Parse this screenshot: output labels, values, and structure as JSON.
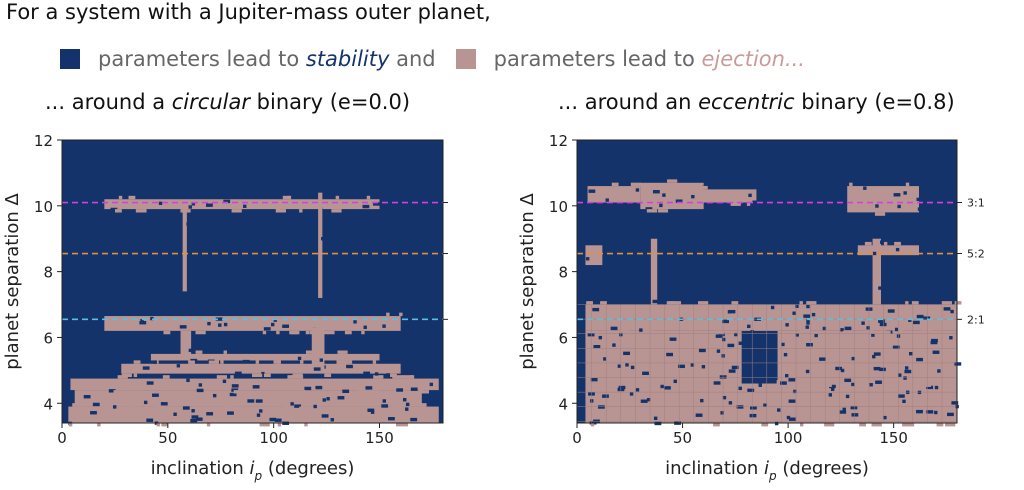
{
  "headline": "For a system with a Jupiter-mass outer planet,",
  "legend": {
    "stable": {
      "text1": "parameters lead to ",
      "emph": "stability",
      "text2": " and",
      "color": "#14336b"
    },
    "eject": {
      "text1": "parameters lead to ",
      "emph": "ejection...",
      "color": "#b89593"
    }
  },
  "panels": [
    {
      "pre": "... around a ",
      "emph": "circular",
      "post": " binary (e=0.0)"
    },
    {
      "pre": "... around an ",
      "emph": "eccentric",
      "post": " binary (e=0.8)"
    }
  ],
  "resonance_labels": [
    "3:1",
    "5:2",
    "2:1"
  ],
  "chart_data": [
    {
      "type": "heatmap",
      "title": "... around a circular binary (e=0.0)",
      "xlabel": "inclination i_p (degrees)",
      "ylabel": "planet separation Δ",
      "xlim": [
        0,
        180
      ],
      "ylim": [
        3.4,
        12
      ],
      "xticks": [
        0,
        50,
        100,
        150
      ],
      "yticks": [
        4,
        6,
        8,
        10,
        12
      ],
      "resonances": [
        {
          "y": 10.1,
          "color": "#d63ee0"
        },
        {
          "y": 8.55,
          "color": "#e0903a"
        },
        {
          "y": 6.55,
          "color": "#5bc0e0"
        }
      ],
      "ejection_regions": [
        {
          "xmin": 3,
          "xmax": 178,
          "ymin": 3.4,
          "ymax": 3.9
        },
        {
          "xmin": 6,
          "xmax": 170,
          "ymin": 3.9,
          "ymax": 4.4
        },
        {
          "xmin": 4,
          "xmax": 178,
          "ymin": 4.4,
          "ymax": 4.75
        },
        {
          "xmin": 28,
          "xmax": 160,
          "ymin": 4.9,
          "ymax": 5.2
        },
        {
          "xmin": 42,
          "xmax": 150,
          "ymin": 5.3,
          "ymax": 5.5
        },
        {
          "xmin": 20,
          "xmax": 160,
          "ymin": 6.2,
          "ymax": 6.65
        },
        {
          "xmin": 20,
          "xmax": 150,
          "ymin": 9.9,
          "ymax": 10.2
        },
        {
          "xmin": 56,
          "xmax": 61,
          "ymin": 5.4,
          "ymax": 6.2
        },
        {
          "xmin": 118,
          "xmax": 124,
          "ymin": 5.0,
          "ymax": 6.3
        },
        {
          "xmin": 57,
          "xmax": 59,
          "ymin": 7.4,
          "ymax": 9.9
        },
        {
          "xmin": 121,
          "xmax": 123,
          "ymin": 7.2,
          "ymax": 10.4
        }
      ]
    },
    {
      "type": "heatmap",
      "title": "... around an eccentric binary (e=0.8)",
      "xlabel": "inclination i_p (degrees)",
      "ylabel": "planet separation Δ",
      "xlim": [
        0,
        180
      ],
      "ylim": [
        3.4,
        12
      ],
      "xticks": [
        0,
        50,
        100,
        150
      ],
      "yticks": [
        4,
        6,
        8,
        10,
        12
      ],
      "resonances": [
        {
          "y": 10.1,
          "color": "#d63ee0"
        },
        {
          "y": 8.55,
          "color": "#e0903a"
        },
        {
          "y": 6.55,
          "color": "#5bc0e0"
        }
      ],
      "ejection_regions": [
        {
          "xmin": 4,
          "xmax": 180,
          "ymin": 3.4,
          "ymax": 4.6
        },
        {
          "xmin": 4,
          "xmax": 78,
          "ymin": 4.6,
          "ymax": 6.2
        },
        {
          "xmin": 95,
          "xmax": 180,
          "ymin": 4.6,
          "ymax": 6.2
        },
        {
          "xmin": 4,
          "xmax": 180,
          "ymin": 6.2,
          "ymax": 7.0
        },
        {
          "xmin": 4,
          "xmax": 12,
          "ymin": 8.2,
          "ymax": 8.8
        },
        {
          "xmin": 35,
          "xmax": 38,
          "ymin": 7.0,
          "ymax": 9.0
        },
        {
          "xmin": 140,
          "xmax": 144,
          "ymin": 7.0,
          "ymax": 9.0
        },
        {
          "xmin": 5,
          "xmax": 30,
          "ymin": 10.1,
          "ymax": 10.6
        },
        {
          "xmin": 30,
          "xmax": 60,
          "ymin": 9.9,
          "ymax": 10.7
        },
        {
          "xmin": 50,
          "xmax": 85,
          "ymin": 10.1,
          "ymax": 10.5
        },
        {
          "xmin": 128,
          "xmax": 162,
          "ymin": 9.8,
          "ymax": 10.6
        },
        {
          "xmin": 133,
          "xmax": 162,
          "ymin": 8.5,
          "ymax": 8.8
        }
      ]
    }
  ]
}
